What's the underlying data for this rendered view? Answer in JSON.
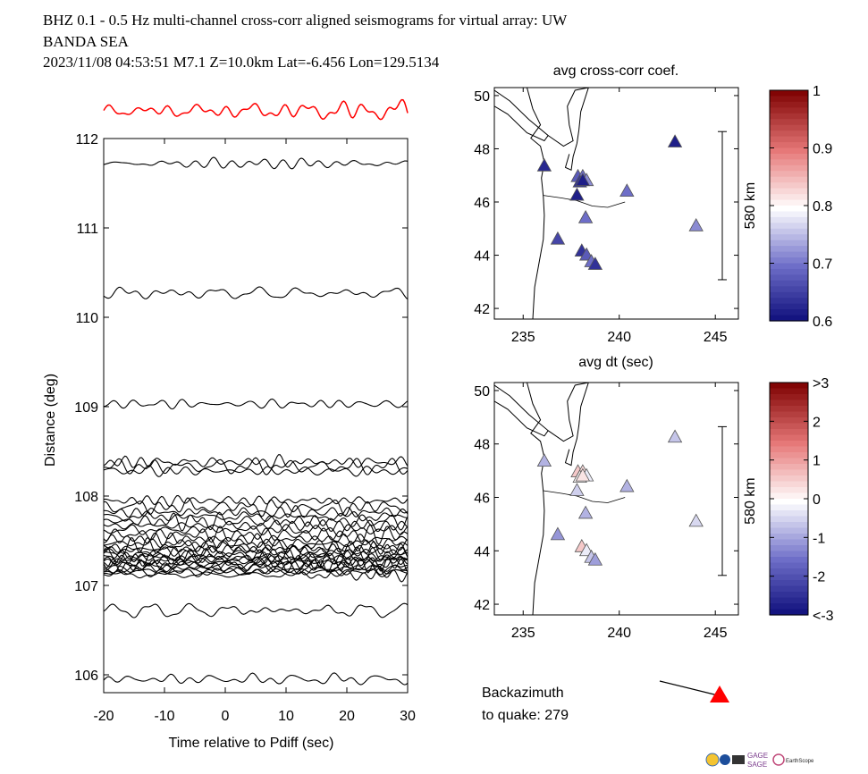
{
  "header": {
    "line1": "BHZ  0.1 - 0.5 Hz  multi-channel cross-corr aligned seismograms for virtual array: UW",
    "line2": "BANDA SEA",
    "line3": "2023/11/08  04:53:51  M7.1  Z=10.0km Lat=-6.456 Lon=129.5134"
  },
  "chart_data": [
    {
      "type": "line",
      "name": "seismogram-section",
      "xlabel": "Time relative to Pdiff (sec)",
      "ylabel": "Distance (deg)",
      "xlim": [
        -20,
        30
      ],
      "ylim": [
        105.8,
        112.0
      ],
      "xticks": [
        "-20",
        "-10",
        "0",
        "10",
        "20",
        "30"
      ],
      "xtick_values": [
        -20,
        -10,
        0,
        10,
        20,
        30
      ],
      "yticks": [
        "106",
        "107",
        "108",
        "109",
        "110",
        "111",
        "112"
      ],
      "ytick_values": [
        106,
        107,
        108,
        109,
        110,
        111,
        112
      ],
      "trace_color": "#000000",
      "stack_color": "#ff0000",
      "trace_distances": [
        111.72,
        110.27,
        109.03,
        108.38,
        108.33,
        108.28,
        107.95,
        107.88,
        107.82,
        107.77,
        107.72,
        107.67,
        107.62,
        107.57,
        107.52,
        107.47,
        107.44,
        107.41,
        107.38,
        107.35,
        107.33,
        107.31,
        107.29,
        107.27,
        107.25,
        107.23,
        107.21,
        107.19,
        107.17,
        107.15,
        107.12,
        106.72,
        105.95
      ]
    },
    {
      "type": "scatter",
      "name": "cross-corr-map",
      "title": "avg cross-corr coef.",
      "xlim": [
        233.5,
        246.2
      ],
      "ylim": [
        41.6,
        50.3
      ],
      "xticks": [
        "235",
        "240",
        "245"
      ],
      "xtick_values": [
        235,
        240,
        245
      ],
      "yticks": [
        "42",
        "44",
        "46",
        "48",
        "50"
      ],
      "ytick_values": [
        42,
        44,
        46,
        48,
        50
      ],
      "scale_label": "580 km",
      "colorbar": {
        "min": 0.6,
        "max": 1.0,
        "labels": [
          "1",
          "0.9",
          "0.8",
          "0.7",
          "0.6"
        ]
      },
      "stations": [
        {
          "lon": 242.9,
          "lat": 48.25,
          "value": 0.62
        },
        {
          "lon": 236.1,
          "lat": 47.35,
          "value": 0.63
        },
        {
          "lon": 237.85,
          "lat": 46.95,
          "value": 0.68
        },
        {
          "lon": 238.1,
          "lat": 46.95,
          "value": 0.7
        },
        {
          "lon": 238.3,
          "lat": 46.8,
          "value": 0.72
        },
        {
          "lon": 237.95,
          "lat": 46.75,
          "value": 0.64
        },
        {
          "lon": 238.1,
          "lat": 46.8,
          "value": 0.62
        },
        {
          "lon": 237.8,
          "lat": 46.25,
          "value": 0.62
        },
        {
          "lon": 240.4,
          "lat": 46.4,
          "value": 0.7
        },
        {
          "lon": 238.25,
          "lat": 45.4,
          "value": 0.7
        },
        {
          "lon": 244.0,
          "lat": 45.1,
          "value": 0.72
        },
        {
          "lon": 236.8,
          "lat": 44.6,
          "value": 0.66
        },
        {
          "lon": 238.05,
          "lat": 44.15,
          "value": 0.64
        },
        {
          "lon": 238.3,
          "lat": 44.0,
          "value": 0.68
        },
        {
          "lon": 238.55,
          "lat": 43.75,
          "value": 0.7
        },
        {
          "lon": 238.75,
          "lat": 43.65,
          "value": 0.64
        }
      ]
    },
    {
      "type": "scatter",
      "name": "dt-map",
      "title": "avg dt (sec)",
      "xlim": [
        233.5,
        246.2
      ],
      "ylim": [
        41.6,
        50.3
      ],
      "xticks": [
        "235",
        "240",
        "245"
      ],
      "xtick_values": [
        235,
        240,
        245
      ],
      "yticks": [
        "42",
        "44",
        "46",
        "48",
        "50"
      ],
      "ytick_values": [
        42,
        44,
        46,
        48,
        50
      ],
      "scale_label": "580 km",
      "colorbar": {
        "min": -3,
        "max": 3,
        "labels": [
          ">3",
          "2",
          "1",
          "0",
          "-1",
          "-2",
          "<-3"
        ]
      },
      "stations": [
        {
          "lon": 242.9,
          "lat": 48.25,
          "value": -0.6
        },
        {
          "lon": 236.1,
          "lat": 47.35,
          "value": -0.8
        },
        {
          "lon": 237.85,
          "lat": 46.95,
          "value": 0.6
        },
        {
          "lon": 238.1,
          "lat": 46.95,
          "value": 0.4
        },
        {
          "lon": 238.3,
          "lat": 46.8,
          "value": -0.2
        },
        {
          "lon": 237.95,
          "lat": 46.75,
          "value": 0.1
        },
        {
          "lon": 238.1,
          "lat": 46.8,
          "value": 0.3
        },
        {
          "lon": 237.8,
          "lat": 46.25,
          "value": -0.5
        },
        {
          "lon": 240.4,
          "lat": 46.4,
          "value": -0.8
        },
        {
          "lon": 238.25,
          "lat": 45.4,
          "value": -0.8
        },
        {
          "lon": 244.0,
          "lat": 45.1,
          "value": -0.4
        },
        {
          "lon": 236.8,
          "lat": 44.6,
          "value": -1.1
        },
        {
          "lon": 238.05,
          "lat": 44.15,
          "value": 0.6
        },
        {
          "lon": 238.3,
          "lat": 44.0,
          "value": -0.2
        },
        {
          "lon": 238.55,
          "lat": 43.75,
          "value": -0.6
        },
        {
          "lon": 238.75,
          "lat": 43.65,
          "value": -1.0
        }
      ]
    }
  ],
  "backazimuth": {
    "line1": "Backazimuth",
    "line2": "to quake:  279",
    "value_deg": 279
  },
  "logos": {
    "gage": "GAGE",
    "sage": "SAGE",
    "earthscope": "EarthScope"
  }
}
